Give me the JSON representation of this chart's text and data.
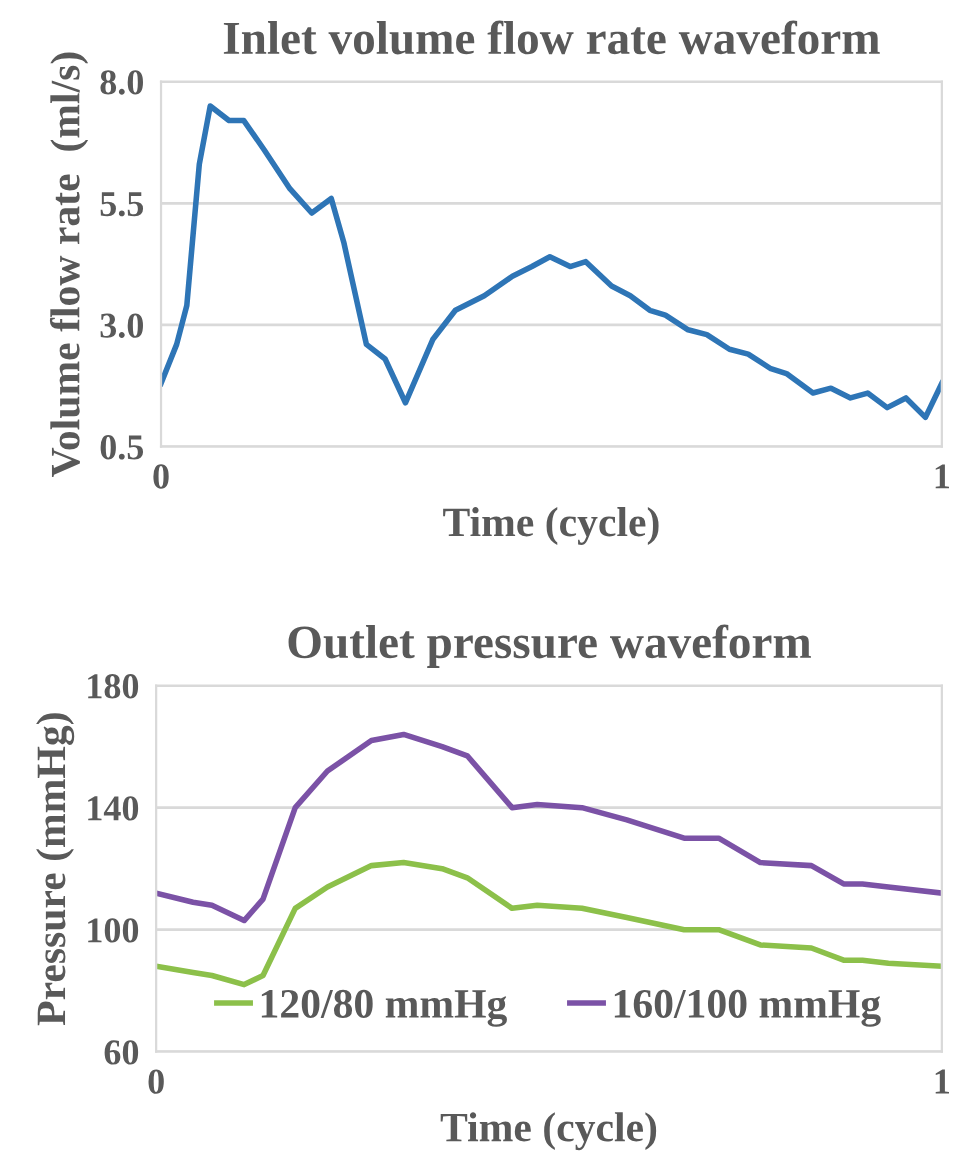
{
  "chart_data": [
    {
      "type": "line",
      "title": "Inlet volume flow rate waveform",
      "xlabel": "Time (cycle)",
      "ylabel": "Volume flow rate  (ml/s)",
      "xlim": [
        0,
        1
      ],
      "xticks": [
        0,
        1
      ],
      "ylim": [
        0.5,
        8.0
      ],
      "yticks": [
        {
          "value": 0.5,
          "label": "0.5"
        },
        {
          "value": 3.0,
          "label": "3.0"
        },
        {
          "value": 5.5,
          "label": "5.5"
        },
        {
          "value": 8.0,
          "label": "8.0"
        }
      ],
      "grid": "y",
      "legend": false,
      "line_style": "solid",
      "marker": "none",
      "series": [
        {
          "color": "#2e75b6",
          "x": [
            0,
            0.02,
            0.033,
            0.049,
            0.063,
            0.087,
            0.106,
            0.132,
            0.165,
            0.193,
            0.218,
            0.234,
            0.263,
            0.287,
            0.313,
            0.348,
            0.377,
            0.414,
            0.45,
            0.475,
            0.498,
            0.524,
            0.544,
            0.577,
            0.601,
            0.626,
            0.646,
            0.675,
            0.699,
            0.728,
            0.752,
            0.781,
            0.801,
            0.835,
            0.858,
            0.883,
            0.905,
            0.93,
            0.954,
            0.979,
            1.0
          ],
          "values": [
            1.8,
            2.6,
            3.4,
            6.3,
            7.5,
            7.2,
            7.2,
            6.6,
            5.8,
            5.3,
            5.6,
            4.7,
            2.6,
            2.3,
            1.4,
            2.7,
            3.3,
            3.6,
            4.0,
            4.2,
            4.4,
            4.2,
            4.3,
            3.8,
            3.6,
            3.3,
            3.2,
            2.9,
            2.8,
            2.5,
            2.4,
            2.1,
            2.0,
            1.6,
            1.7,
            1.5,
            1.6,
            1.3,
            1.5,
            1.1,
            1.8
          ]
        }
      ]
    },
    {
      "type": "line",
      "title": "Outlet pressure waveform",
      "xlabel": "Time (cycle)",
      "ylabel": "Pressure (mmHg)",
      "xlim": [
        0,
        1
      ],
      "xticks": [
        0,
        1
      ],
      "ylim": [
        60,
        180
      ],
      "yticks": [
        60,
        100,
        140,
        180
      ],
      "grid": "y",
      "legend": "bottom",
      "line_style": "solid",
      "marker": "none",
      "series": [
        {
          "name": "120/80 mmHg",
          "color": "#8cc04a",
          "x": [
            0,
            0.047,
            0.071,
            0.112,
            0.136,
            0.177,
            0.218,
            0.274,
            0.315,
            0.364,
            0.396,
            0.453,
            0.485,
            0.542,
            0.599,
            0.672,
            0.716,
            0.769,
            0.834,
            0.875,
            0.899,
            0.932,
            1.0
          ],
          "values": [
            88,
            86,
            85,
            82,
            85,
            107,
            114,
            121,
            122,
            120,
            117,
            107,
            108,
            107,
            104,
            100,
            100,
            95,
            94,
            90,
            90,
            89,
            88
          ]
        },
        {
          "name": "160/100 mmHg",
          "color": "#7b52a6",
          "x": [
            0,
            0.047,
            0.071,
            0.112,
            0.136,
            0.177,
            0.218,
            0.274,
            0.315,
            0.364,
            0.396,
            0.453,
            0.485,
            0.542,
            0.599,
            0.672,
            0.716,
            0.769,
            0.834,
            0.875,
            0.899,
            0.932,
            1.0
          ],
          "values": [
            112,
            109,
            108,
            103,
            110,
            140,
            152,
            162,
            164,
            160,
            157,
            140,
            141,
            140,
            136,
            130,
            130,
            122,
            121,
            115,
            115,
            114,
            112
          ]
        }
      ]
    }
  ]
}
